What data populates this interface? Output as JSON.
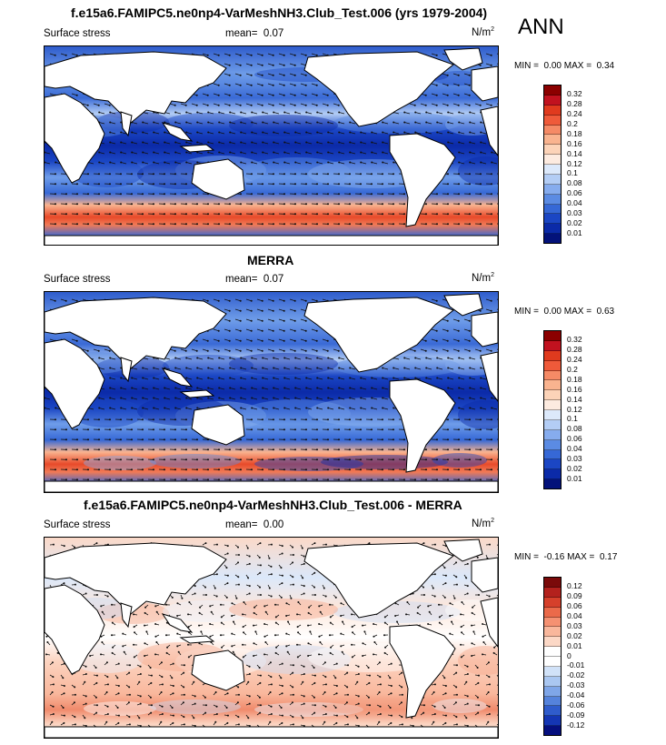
{
  "season": "ANN",
  "panels": [
    {
      "title": "f.e15a6.FAMIPC5.ne0np4-VarMeshNH3.Club_Test.006 (yrs 1979-2004)",
      "variable": "Surface stress",
      "mean_label": "mean=",
      "mean_value": "0.07",
      "units": "N/m",
      "units_exp": "2",
      "min_label": "MIN =",
      "min_value": "0.00",
      "max_label": "MAX =",
      "max_value": "0.34",
      "colorbar_labels": [
        "0.32",
        "0.28",
        "0.24",
        "0.2",
        "0.18",
        "0.16",
        "0.14",
        "0.12",
        "0.1",
        "0.08",
        "0.06",
        "0.04",
        "0.03",
        "0.02",
        "0.01"
      ]
    },
    {
      "title": "MERRA",
      "variable": "Surface stress",
      "mean_label": "mean=",
      "mean_value": "0.07",
      "units": "N/m",
      "units_exp": "2",
      "min_label": "MIN =",
      "min_value": "0.00",
      "max_label": "MAX =",
      "max_value": "0.63",
      "colorbar_labels": [
        "0.32",
        "0.28",
        "0.24",
        "0.2",
        "0.18",
        "0.16",
        "0.14",
        "0.12",
        "0.1",
        "0.08",
        "0.06",
        "0.04",
        "0.03",
        "0.02",
        "0.01"
      ]
    },
    {
      "title": "f.e15a6.FAMIPC5.ne0np4-VarMeshNH3.Club_Test.006 - MERRA",
      "variable": "Surface stress",
      "mean_label": "mean=",
      "mean_value": "0.00",
      "units": "N/m",
      "units_exp": "2",
      "min_label": "MIN =",
      "min_value": "-0.16",
      "max_label": "MAX =",
      "max_value": "0.17",
      "colorbar_labels": [
        "0.12",
        "0.09",
        "0.06",
        "0.04",
        "0.03",
        "0.02",
        "0.01",
        "0",
        "-0.01",
        "-0.02",
        "-0.03",
        "-0.04",
        "-0.06",
        "-0.09",
        "-0.12"
      ]
    }
  ],
  "colors": {
    "abs_scale": [
      "#8b0000",
      "#c1121f",
      "#e03a1e",
      "#ef5a3a",
      "#f58a66",
      "#f9b38f",
      "#fcd3b8",
      "#fdebe0",
      "#dce9fb",
      "#b3cdf5",
      "#86acee",
      "#5b8be3",
      "#3668d6",
      "#1b46c4",
      "#0b2aa8",
      "#03127a"
    ],
    "diff_scale": [
      "#7a0a0a",
      "#b3211d",
      "#d6402b",
      "#eb6a4a",
      "#f59172",
      "#f9b79c",
      "#fcd8c6",
      "#ffffff",
      "#ffffff",
      "#d1e2f8",
      "#aac7f1",
      "#7fa6e8",
      "#5583dc",
      "#2f5ccc",
      "#1436b4",
      "#050f7e"
    ],
    "land": "#ffffff",
    "coast": "#000000"
  }
}
